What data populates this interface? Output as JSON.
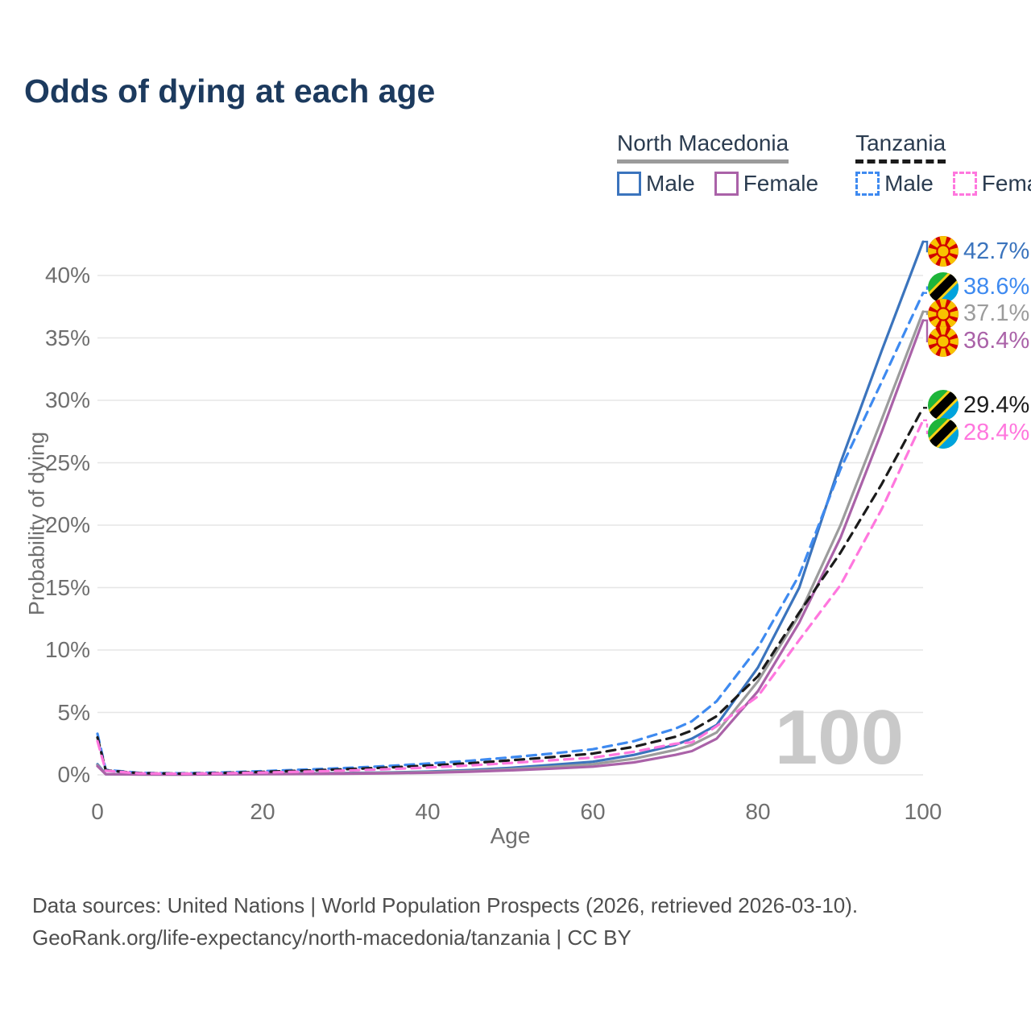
{
  "title": "Odds of dying at each age",
  "legend": {
    "countries": [
      {
        "name": "North Macedonia",
        "line_style": "solid",
        "rule_color": "#9b9b9b",
        "entries": [
          {
            "label": "Male",
            "series": "nm_male"
          },
          {
            "label": "Female",
            "series": "nm_female"
          }
        ]
      },
      {
        "name": "Tanzania",
        "line_style": "dashed",
        "rule_color": "#1b1b1b",
        "entries": [
          {
            "label": "Male",
            "series": "tz_male"
          },
          {
            "label": "Female",
            "series": "tz_female"
          }
        ]
      }
    ]
  },
  "chart_data": {
    "type": "line",
    "title": "Odds of dying at each age",
    "xlabel": "Age",
    "ylabel": "Probability of dying",
    "xlim": [
      0,
      100
    ],
    "ylim": [
      0,
      43.5
    ],
    "grid": true,
    "legend_position": "top-right",
    "x_ticks": {
      "values": [
        0,
        20,
        40,
        60,
        80,
        100
      ],
      "labels": [
        "0",
        "20",
        "40",
        "60",
        "80",
        "100"
      ]
    },
    "y_ticks": {
      "values": [
        0,
        5,
        10,
        15,
        20,
        25,
        30,
        35,
        40
      ],
      "labels": [
        "0%",
        "5%",
        "10%",
        "15%",
        "20%",
        "25%",
        "30%",
        "35%",
        "40%"
      ]
    },
    "ages": [
      0,
      1,
      5,
      10,
      15,
      20,
      25,
      30,
      35,
      40,
      45,
      50,
      55,
      60,
      65,
      70,
      72,
      75,
      80,
      85,
      90,
      95,
      100
    ],
    "series": [
      {
        "key": "nm_male",
        "name": "North Macedonia Male",
        "country": "North Macedonia",
        "sex": "Male",
        "style": "solid",
        "color": "#3b74bd",
        "values": [
          0.85,
          0.06,
          0.04,
          0.04,
          0.07,
          0.1,
          0.12,
          0.15,
          0.19,
          0.26,
          0.38,
          0.56,
          0.8,
          1.05,
          1.6,
          2.4,
          2.9,
          4.0,
          8.6,
          15.0,
          25.0,
          34.0,
          42.7
        ]
      },
      {
        "key": "nm_combined",
        "name": "North Macedonia Both sexes",
        "country": "North Macedonia",
        "sex": "Both",
        "style": "solid",
        "color": "#9c9c9c",
        "values": [
          0.78,
          0.05,
          0.03,
          0.03,
          0.05,
          0.08,
          0.1,
          0.12,
          0.16,
          0.22,
          0.31,
          0.46,
          0.64,
          0.85,
          1.3,
          2.0,
          2.4,
          3.4,
          7.5,
          12.8,
          20.0,
          28.5,
          37.1
        ]
      },
      {
        "key": "nm_female",
        "name": "North Macedonia Female",
        "country": "North Macedonia",
        "sex": "Female",
        "style": "solid",
        "color": "#aa62a8",
        "values": [
          0.7,
          0.05,
          0.03,
          0.02,
          0.04,
          0.06,
          0.07,
          0.09,
          0.12,
          0.17,
          0.25,
          0.36,
          0.5,
          0.66,
          1.0,
          1.6,
          1.9,
          2.9,
          6.7,
          12.2,
          19.0,
          27.5,
          36.4
        ]
      },
      {
        "key": "tz_male",
        "name": "Tanzania Male",
        "country": "Tanzania",
        "sex": "Male",
        "style": "dashed",
        "color": "#3e8af0",
        "values": [
          3.3,
          0.4,
          0.16,
          0.12,
          0.19,
          0.3,
          0.42,
          0.55,
          0.7,
          0.9,
          1.12,
          1.4,
          1.7,
          2.05,
          2.7,
          3.7,
          4.3,
          5.9,
          10.2,
          16.0,
          24.5,
          31.5,
          38.6
        ]
      },
      {
        "key": "tz_combined",
        "name": "Tanzania Both sexes",
        "country": "Tanzania",
        "sex": "Both",
        "style": "dashed",
        "color": "#1b1b1b",
        "values": [
          3.0,
          0.36,
          0.14,
          0.1,
          0.15,
          0.24,
          0.34,
          0.45,
          0.58,
          0.74,
          0.93,
          1.16,
          1.42,
          1.7,
          2.25,
          3.05,
          3.55,
          4.7,
          7.9,
          13.0,
          17.8,
          23.3,
          29.4
        ]
      },
      {
        "key": "tz_female",
        "name": "Tanzania Female",
        "country": "Tanzania",
        "sex": "Female",
        "style": "dashed",
        "color": "#ff77de",
        "values": [
          2.7,
          0.33,
          0.12,
          0.09,
          0.12,
          0.19,
          0.26,
          0.34,
          0.45,
          0.59,
          0.75,
          0.95,
          1.17,
          1.38,
          1.85,
          2.5,
          2.6,
          3.9,
          6.3,
          10.8,
          15.2,
          21.3,
          28.4
        ]
      }
    ],
    "end_labels": [
      {
        "series": "nm_male",
        "text": "42.7%",
        "flag": "north-macedonia-flag-icon",
        "color": "#3b74bd"
      },
      {
        "series": "tz_male",
        "text": "38.6%",
        "flag": "tanzania-flag-icon",
        "color": "#3e8af0"
      },
      {
        "series": "nm_combined",
        "text": "37.1%",
        "flag": "north-macedonia-flag-icon",
        "color": "#9c9c9c"
      },
      {
        "series": "nm_female",
        "text": "36.4%",
        "flag": "north-macedonia-flag-icon",
        "color": "#aa62a8"
      },
      {
        "series": "tz_combined",
        "text": "29.4%",
        "flag": "tanzania-flag-icon",
        "color": "#1c1c1c"
      },
      {
        "series": "tz_female",
        "text": "28.4%",
        "flag": "tanzania-flag-icon",
        "color": "#ff77de"
      }
    ],
    "watermark": "100"
  },
  "footer": {
    "line1": "Data sources: United Nations | World Population Prospects (2026, retrieved 2026-03-10).",
    "line2": "GeoRank.org/life-expectancy/north-macedonia/tanzania | CC BY"
  }
}
